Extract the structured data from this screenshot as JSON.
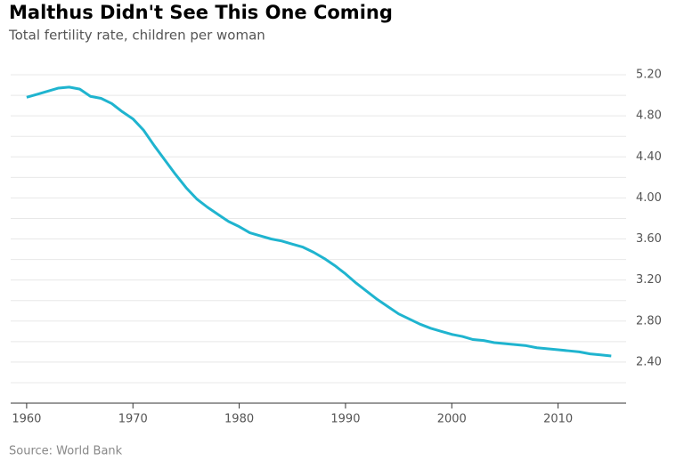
{
  "chart_data": {
    "type": "line",
    "title": "Malthus Didn't See This One Coming",
    "subtitle": "Total fertility rate, children per woman",
    "source": "Source: World Bank",
    "x": [
      1960,
      1961,
      1962,
      1963,
      1964,
      1965,
      1966,
      1967,
      1968,
      1969,
      1970,
      1971,
      1972,
      1973,
      1974,
      1975,
      1976,
      1977,
      1978,
      1979,
      1980,
      1981,
      1982,
      1983,
      1984,
      1985,
      1986,
      1987,
      1988,
      1989,
      1990,
      1991,
      1992,
      1993,
      1994,
      1995,
      1996,
      1997,
      1998,
      1999,
      2000,
      2001,
      2002,
      2003,
      2004,
      2005,
      2006,
      2007,
      2008,
      2009,
      2010,
      2011,
      2012,
      2013,
      2014,
      2015
    ],
    "series": [
      {
        "name": "Total fertility rate",
        "color": "#1fb4cf",
        "values": [
          4.98,
          5.01,
          5.04,
          5.07,
          5.08,
          5.06,
          4.99,
          4.97,
          4.92,
          4.84,
          4.77,
          4.66,
          4.51,
          4.37,
          4.23,
          4.1,
          3.99,
          3.91,
          3.84,
          3.77,
          3.72,
          3.66,
          3.63,
          3.6,
          3.58,
          3.55,
          3.52,
          3.47,
          3.41,
          3.34,
          3.26,
          3.17,
          3.09,
          3.01,
          2.94,
          2.87,
          2.82,
          2.77,
          2.73,
          2.7,
          2.67,
          2.65,
          2.62,
          2.61,
          2.59,
          2.58,
          2.57,
          2.56,
          2.54,
          2.53,
          2.52,
          2.51,
          2.5,
          2.48,
          2.47,
          2.46
        ]
      }
    ],
    "xlim": [
      1958.5,
      2016.4
    ],
    "xticks": [
      1960,
      1970,
      1980,
      1990,
      2000,
      2010
    ],
    "ylim": [
      2.0,
      5.2
    ],
    "yticks": [
      {
        "value": 2.4,
        "label": "2.40"
      },
      {
        "value": 2.8,
        "label": "2.80"
      },
      {
        "value": 3.2,
        "label": "3.20"
      },
      {
        "value": 3.6,
        "label": "3.60"
      },
      {
        "value": 4.0,
        "label": "4.00"
      },
      {
        "value": 4.4,
        "label": "4.40"
      },
      {
        "value": 4.8,
        "label": "4.80"
      },
      {
        "value": 5.2,
        "label": "5.20"
      }
    ],
    "minor_yticks": [
      2.2,
      2.6,
      3.0,
      3.4,
      3.8,
      4.2,
      4.6,
      5.0
    ],
    "grid": true
  }
}
